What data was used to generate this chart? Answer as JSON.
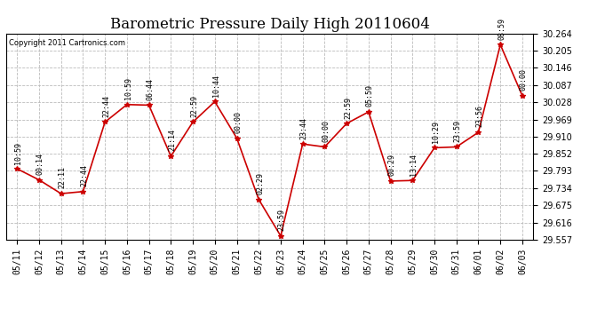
{
  "title": "Barometric Pressure Daily High 20110604",
  "copyright": "Copyright 2011 Cartronics.com",
  "x_labels": [
    "05/11",
    "05/12",
    "05/13",
    "05/14",
    "05/15",
    "05/16",
    "05/17",
    "05/18",
    "05/19",
    "05/20",
    "05/21",
    "05/22",
    "05/23",
    "05/24",
    "05/25",
    "05/26",
    "05/27",
    "05/28",
    "05/29",
    "05/30",
    "05/31",
    "06/01",
    "06/02",
    "06/03"
  ],
  "y_values": [
    29.8,
    29.762,
    29.715,
    29.722,
    29.96,
    30.02,
    30.018,
    29.843,
    29.96,
    30.03,
    29.905,
    29.695,
    29.57,
    29.885,
    29.875,
    29.955,
    29.995,
    29.758,
    29.76,
    29.872,
    29.875,
    29.925,
    30.225,
    30.05
  ],
  "point_labels": [
    "10:59",
    "00:14",
    "22:11",
    "22:44",
    "22:44",
    "10:59",
    "06:44",
    "21:14",
    "22:59",
    "10:44",
    "00:00",
    "02:29",
    "23:59",
    "23:44",
    "00:00",
    "22:59",
    "05:59",
    "00:29",
    "13:14",
    "10:29",
    "23:59",
    "23:56",
    "08:59",
    "00:00"
  ],
  "y_min": 29.557,
  "y_max": 30.264,
  "y_ticks": [
    29.557,
    29.616,
    29.675,
    29.734,
    29.793,
    29.852,
    29.91,
    29.969,
    30.028,
    30.087,
    30.146,
    30.205,
    30.264
  ],
  "line_color": "#cc0000",
  "marker_color": "#cc0000",
  "bg_color": "#ffffff",
  "grid_color": "#bbbbbb",
  "title_fontsize": 12,
  "label_fontsize": 6,
  "tick_fontsize": 7
}
